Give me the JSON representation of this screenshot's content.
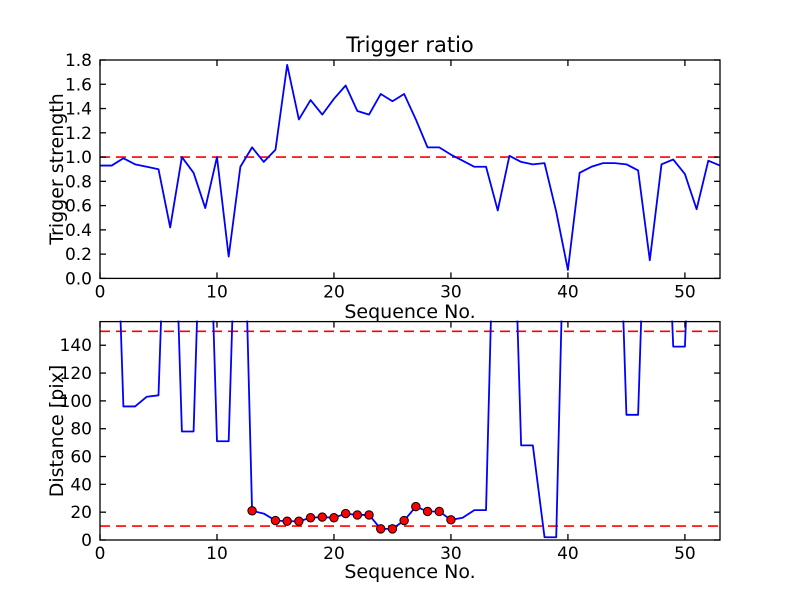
{
  "figure": {
    "background": "#ffffff"
  },
  "colors": {
    "line": "#0000ff",
    "threshold": "#ff0000",
    "marker_fill": "#ff0000",
    "marker_edge": "#000000",
    "axis": "#000000",
    "text": "#000000"
  },
  "chart_data": [
    {
      "type": "line",
      "title": "Trigger ratio",
      "xlabel": "Sequence No.",
      "ylabel": "Trigger strength",
      "xlim": [
        0,
        53
      ],
      "ylim": [
        0.0,
        1.8
      ],
      "grid": false,
      "legend": null,
      "xtick_values": [
        0,
        10,
        20,
        30,
        40,
        50
      ],
      "xtick_labels": [
        "0",
        "10",
        "20",
        "30",
        "40",
        "50"
      ],
      "ytick_values": [
        0.0,
        0.2,
        0.4,
        0.6,
        0.8,
        1.0,
        1.2,
        1.4,
        1.6,
        1.8
      ],
      "ytick_labels": [
        "0.0",
        "0.2",
        "0.4",
        "0.6",
        "0.8",
        "1.0",
        "1.2",
        "1.4",
        "1.6",
        "1.8"
      ],
      "thresholds": [
        1.0
      ],
      "line_color": "#0000ff",
      "threshold_color": "#ff0000",
      "x": [
        0,
        1,
        2,
        3,
        4,
        5,
        6,
        7,
        8,
        9,
        10,
        11,
        12,
        13,
        14,
        15,
        16,
        17,
        18,
        19,
        20,
        21,
        22,
        23,
        24,
        25,
        26,
        27,
        28,
        29,
        30,
        31,
        32,
        33,
        34,
        35,
        36,
        37,
        38,
        39,
        40,
        41,
        42,
        43,
        44,
        45,
        46,
        47,
        48,
        49,
        50,
        51,
        52,
        53
      ],
      "values": [
        0.93,
        0.93,
        0.99,
        0.94,
        0.92,
        0.9,
        0.42,
        1.0,
        0.87,
        0.58,
        1.0,
        0.18,
        0.92,
        1.08,
        0.96,
        1.06,
        1.76,
        1.31,
        1.47,
        1.35,
        1.48,
        1.59,
        1.38,
        1.35,
        1.52,
        1.46,
        1.52,
        1.31,
        1.08,
        1.08,
        1.02,
        0.97,
        0.92,
        0.92,
        0.56,
        1.01,
        0.96,
        0.94,
        0.95,
        0.55,
        0.07,
        0.87,
        0.92,
        0.95,
        0.95,
        0.94,
        0.89,
        0.15,
        0.94,
        0.98,
        0.86,
        0.57,
        0.97,
        0.93
      ]
    },
    {
      "type": "line",
      "title": "",
      "xlabel": "Sequence No.",
      "ylabel": "Distance [pix]",
      "xlim": [
        0,
        53
      ],
      "ylim": [
        0,
        157
      ],
      "grid": false,
      "legend": null,
      "xtick_values": [
        0,
        10,
        20,
        30,
        40,
        50
      ],
      "xtick_labels": [
        "0",
        "10",
        "20",
        "30",
        "40",
        "50"
      ],
      "ytick_values": [
        0,
        20,
        40,
        60,
        80,
        100,
        120,
        140
      ],
      "ytick_labels": [
        "0",
        "20",
        "40",
        "60",
        "80",
        "100",
        "120",
        "140"
      ],
      "thresholds": [
        150,
        10
      ],
      "line_color": "#0000ff",
      "threshold_color": "#ff0000",
      "marker_color": "#ff0000",
      "marker_x": [
        13,
        15,
        16,
        17,
        18,
        19,
        20,
        21,
        22,
        23,
        24,
        25,
        26,
        27,
        28,
        29,
        30
      ],
      "x": [
        0,
        1,
        2,
        3,
        4,
        5,
        6,
        7,
        8,
        9,
        10,
        11,
        12,
        13,
        14,
        15,
        16,
        17,
        18,
        19,
        20,
        21,
        22,
        23,
        24,
        25,
        26,
        27,
        28,
        29,
        30,
        31,
        32,
        33,
        34,
        35,
        36,
        37,
        38,
        39,
        40,
        41,
        42,
        43,
        44,
        45,
        46,
        47,
        48,
        49,
        50,
        51,
        52,
        53
      ],
      "values": [
        350,
        350,
        96,
        96,
        103,
        104,
        350,
        78,
        78,
        350,
        71,
        71,
        350,
        21,
        19,
        14,
        13.5,
        13.5,
        16,
        16.5,
        16,
        19,
        18,
        18,
        8,
        8,
        14,
        24,
        20.5,
        20.5,
        14.5,
        16,
        21.5,
        21.5,
        350,
        350,
        68,
        68,
        2,
        2,
        350,
        350,
        350,
        350,
        350,
        90,
        90,
        350,
        350,
        139,
        139,
        350,
        350,
        350
      ]
    }
  ]
}
